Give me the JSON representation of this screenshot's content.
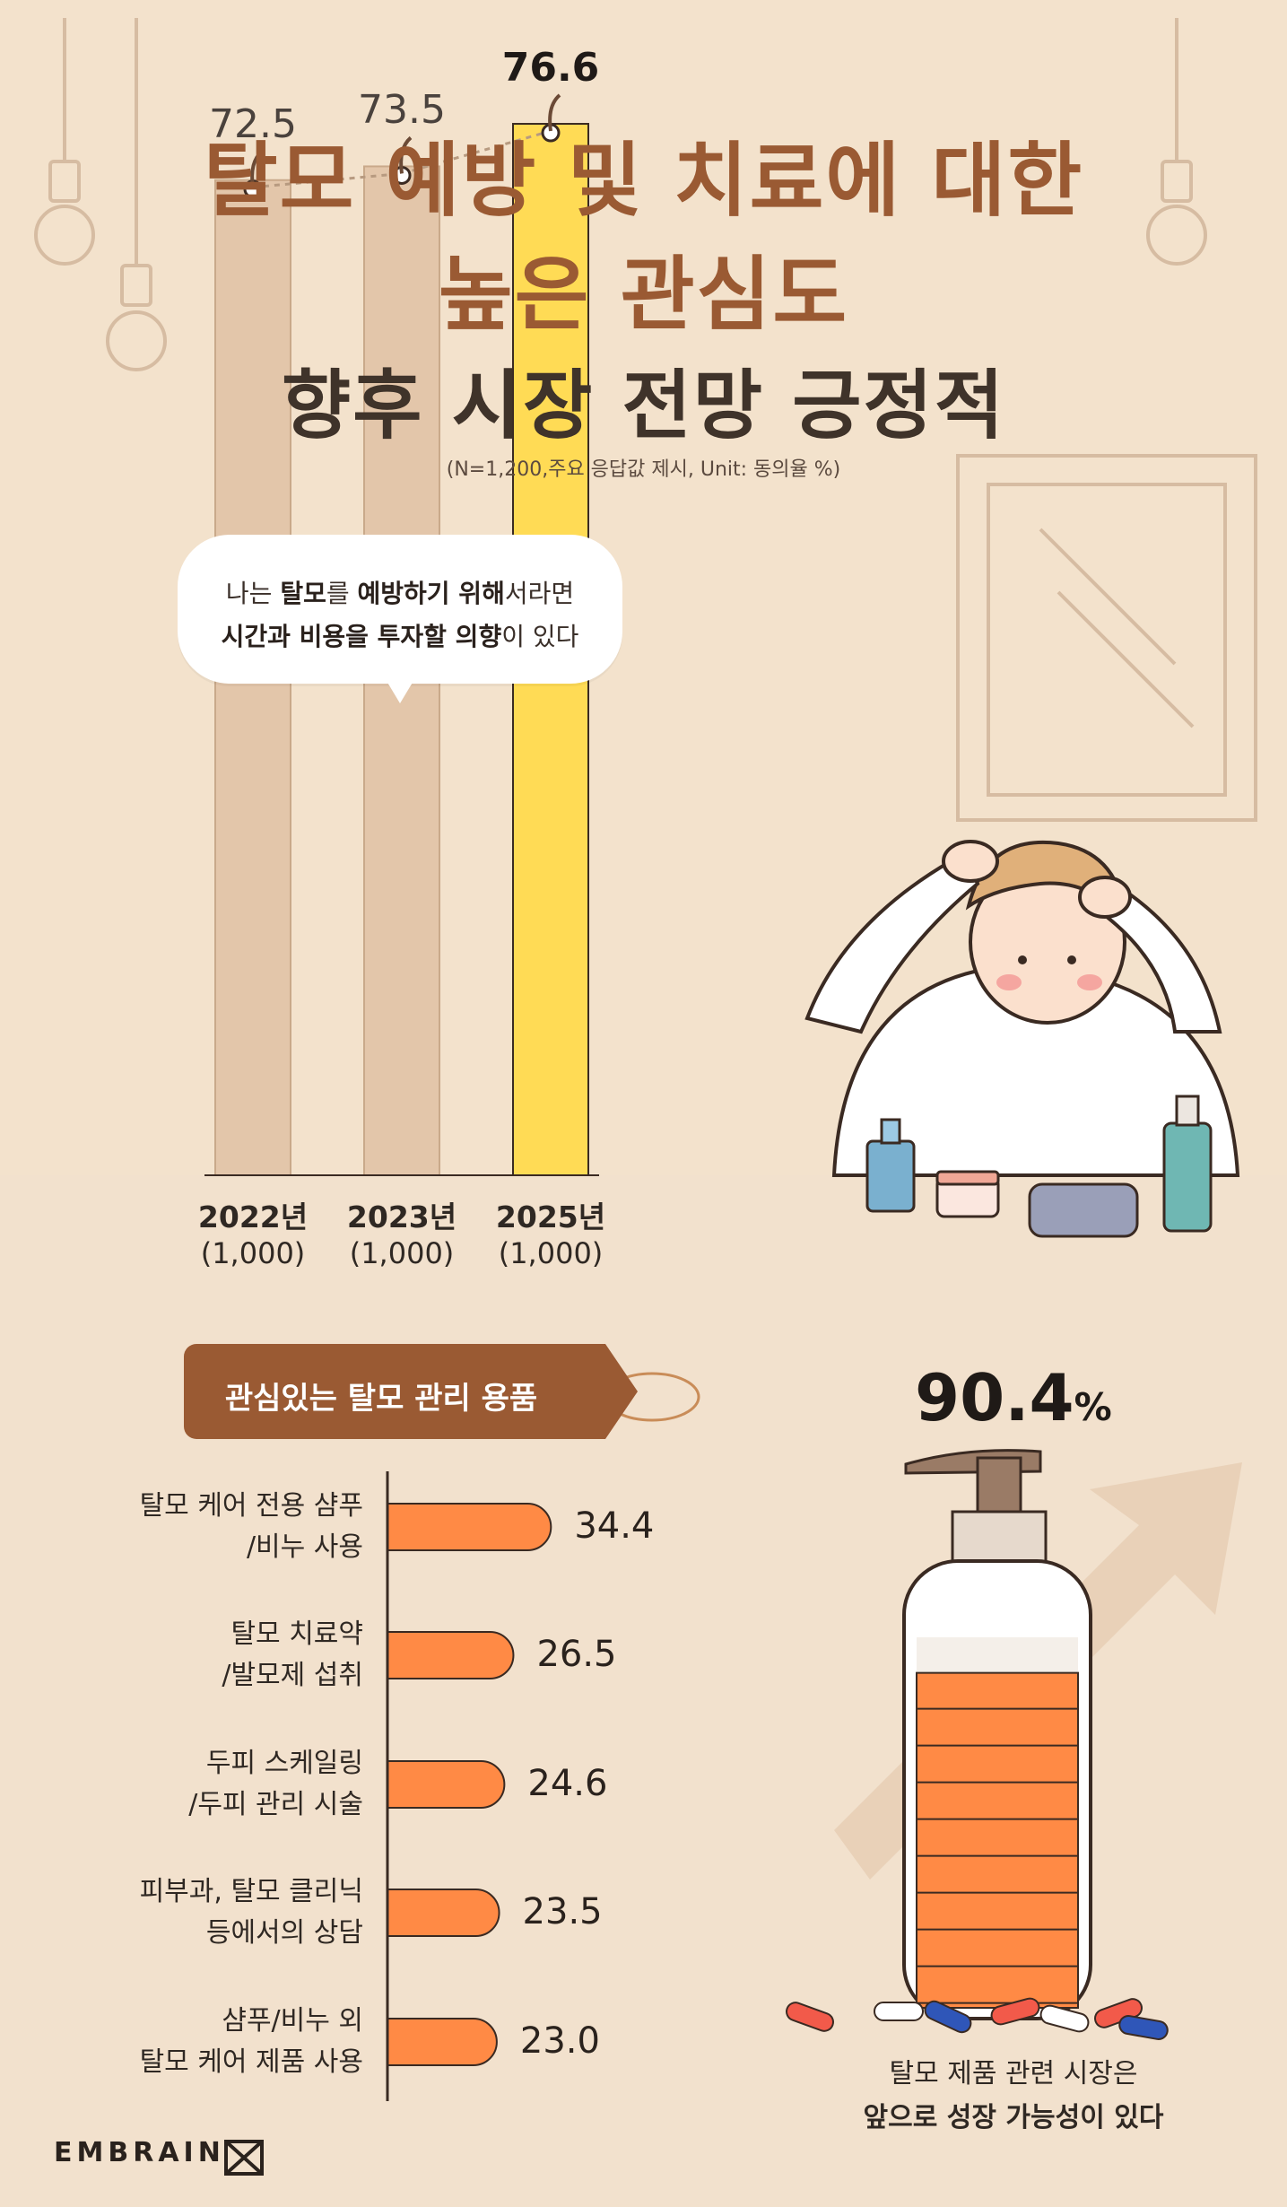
{
  "title": {
    "line1": "탈모 예방 및 치료에 대한",
    "line2": "높은 관심도",
    "line3": "향후 시장 전망 긍정적"
  },
  "note": "(N=1,200,주요 응답값 제시, Unit: 동의율 %)",
  "bubble": {
    "line1_plain1": "나는 ",
    "line1_bold1": "탈모",
    "line1_plain2": "를 ",
    "line1_bold2": "예방하기 위해",
    "line1_plain3": "서라면",
    "line2_bold1": "시간과 비용을 투자할 의향",
    "line2_plain1": "이 있다"
  },
  "tag_label": "관심있는 탈모 관리 용품",
  "big_percent": {
    "value": "90.4",
    "unit": "%"
  },
  "caption": {
    "line1": "탈모 제품 관련 시장은",
    "line2": "앞으로 성장 가능성이 있다"
  },
  "logo": "EMBRAIN",
  "colors": {
    "background": "#f3e2cc",
    "title_brown": "#9a5a33",
    "bar_beige": "#e3c6aa",
    "bar_highlight": "#ffdb55",
    "hbar_orange": "#ff8a45"
  },
  "chart_data": [
    {
      "type": "bar",
      "categories": [
        "2022년",
        "2023년",
        "2025년"
      ],
      "bases": [
        "(1,000)",
        "(1,000)",
        "(1,000)"
      ],
      "values": [
        72.5,
        73.5,
        76.6
      ],
      "highlight_index": 2,
      "ylim": [
        0,
        100
      ]
    },
    {
      "type": "bar",
      "orientation": "horizontal",
      "categories": [
        [
          "탈모 케어 전용 샴푸",
          "/비누 사용"
        ],
        [
          "탈모 치료약",
          "/발모제 섭취"
        ],
        [
          "두피 스케일링",
          "/두피 관리 시술"
        ],
        [
          "피부과, 탈모 클리닉",
          "등에서의 상담"
        ],
        [
          "샴푸/비누 외",
          "탈모 케어 제품 사용"
        ]
      ],
      "values": [
        34.4,
        26.5,
        24.6,
        23.5,
        23.0
      ],
      "value_labels": [
        "34.4",
        "26.5",
        "24.6",
        "23.5",
        "23.0"
      ]
    },
    {
      "type": "bar",
      "orientation": "vertical-fill",
      "value": 90.4
    }
  ]
}
